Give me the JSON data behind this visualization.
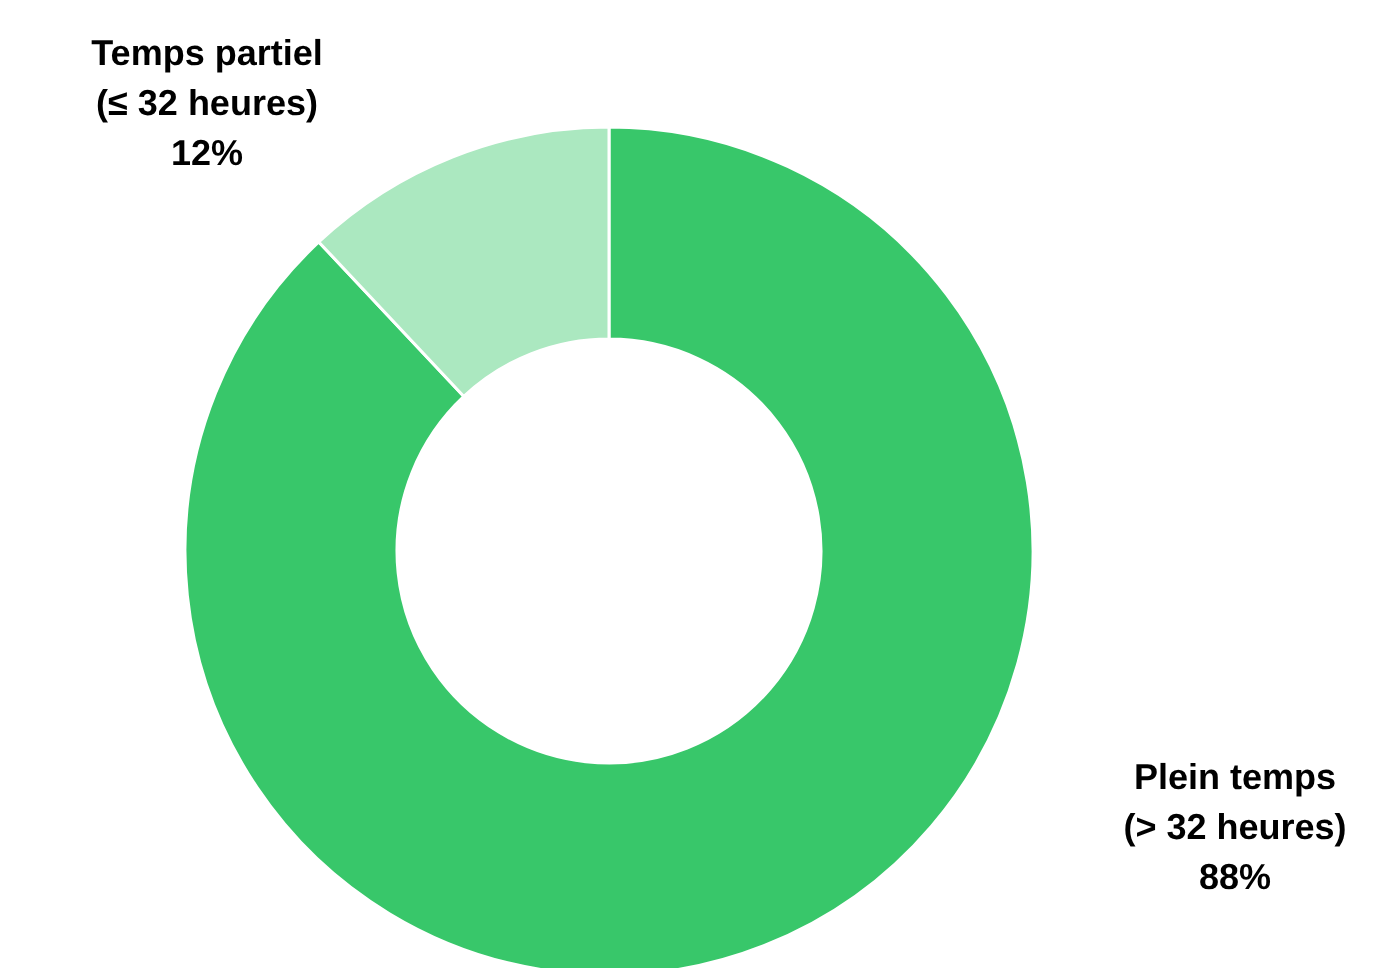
{
  "chart_data": {
    "type": "donut",
    "categories": [
      "Plein temps (> 32 heures)",
      "Temps partiel (≤ 32 heures)"
    ],
    "values": [
      88,
      12
    ],
    "colors": [
      "#38c76a",
      "#abe8c0"
    ],
    "value_labels": [
      "88%",
      "12%"
    ]
  }
}
